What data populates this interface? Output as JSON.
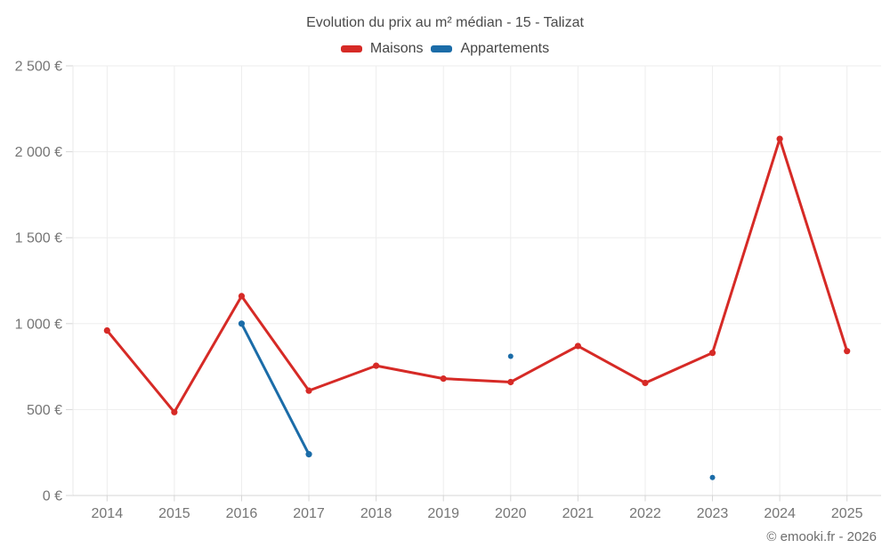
{
  "chart_data": {
    "type": "line",
    "title": "Evolution du prix au m² médian - 15 - Talizat",
    "categories": [
      "2014",
      "2015",
      "2016",
      "2017",
      "2018",
      "2019",
      "2020",
      "2021",
      "2022",
      "2023",
      "2024",
      "2025"
    ],
    "series": [
      {
        "name": "Maisons",
        "color": "#d62a26",
        "values": [
          960,
          485,
          1160,
          610,
          755,
          680,
          660,
          870,
          655,
          830,
          2075,
          840
        ]
      },
      {
        "name": "Appartements",
        "color": "#1b6ca8",
        "values": [
          null,
          null,
          1000,
          240,
          null,
          null,
          810,
          null,
          null,
          105,
          null,
          null
        ]
      }
    ],
    "xlabel": "",
    "ylabel": "",
    "ylim": [
      0,
      2500
    ],
    "ytick_interval": 500,
    "ytick_labels": [
      "0 €",
      "500 €",
      "1 000 €",
      "1 500 €",
      "2 000 €",
      "2 500 €"
    ],
    "grid": true,
    "legend_position": "top",
    "unit": "€"
  },
  "footer": "© emooki.fr - 2026"
}
